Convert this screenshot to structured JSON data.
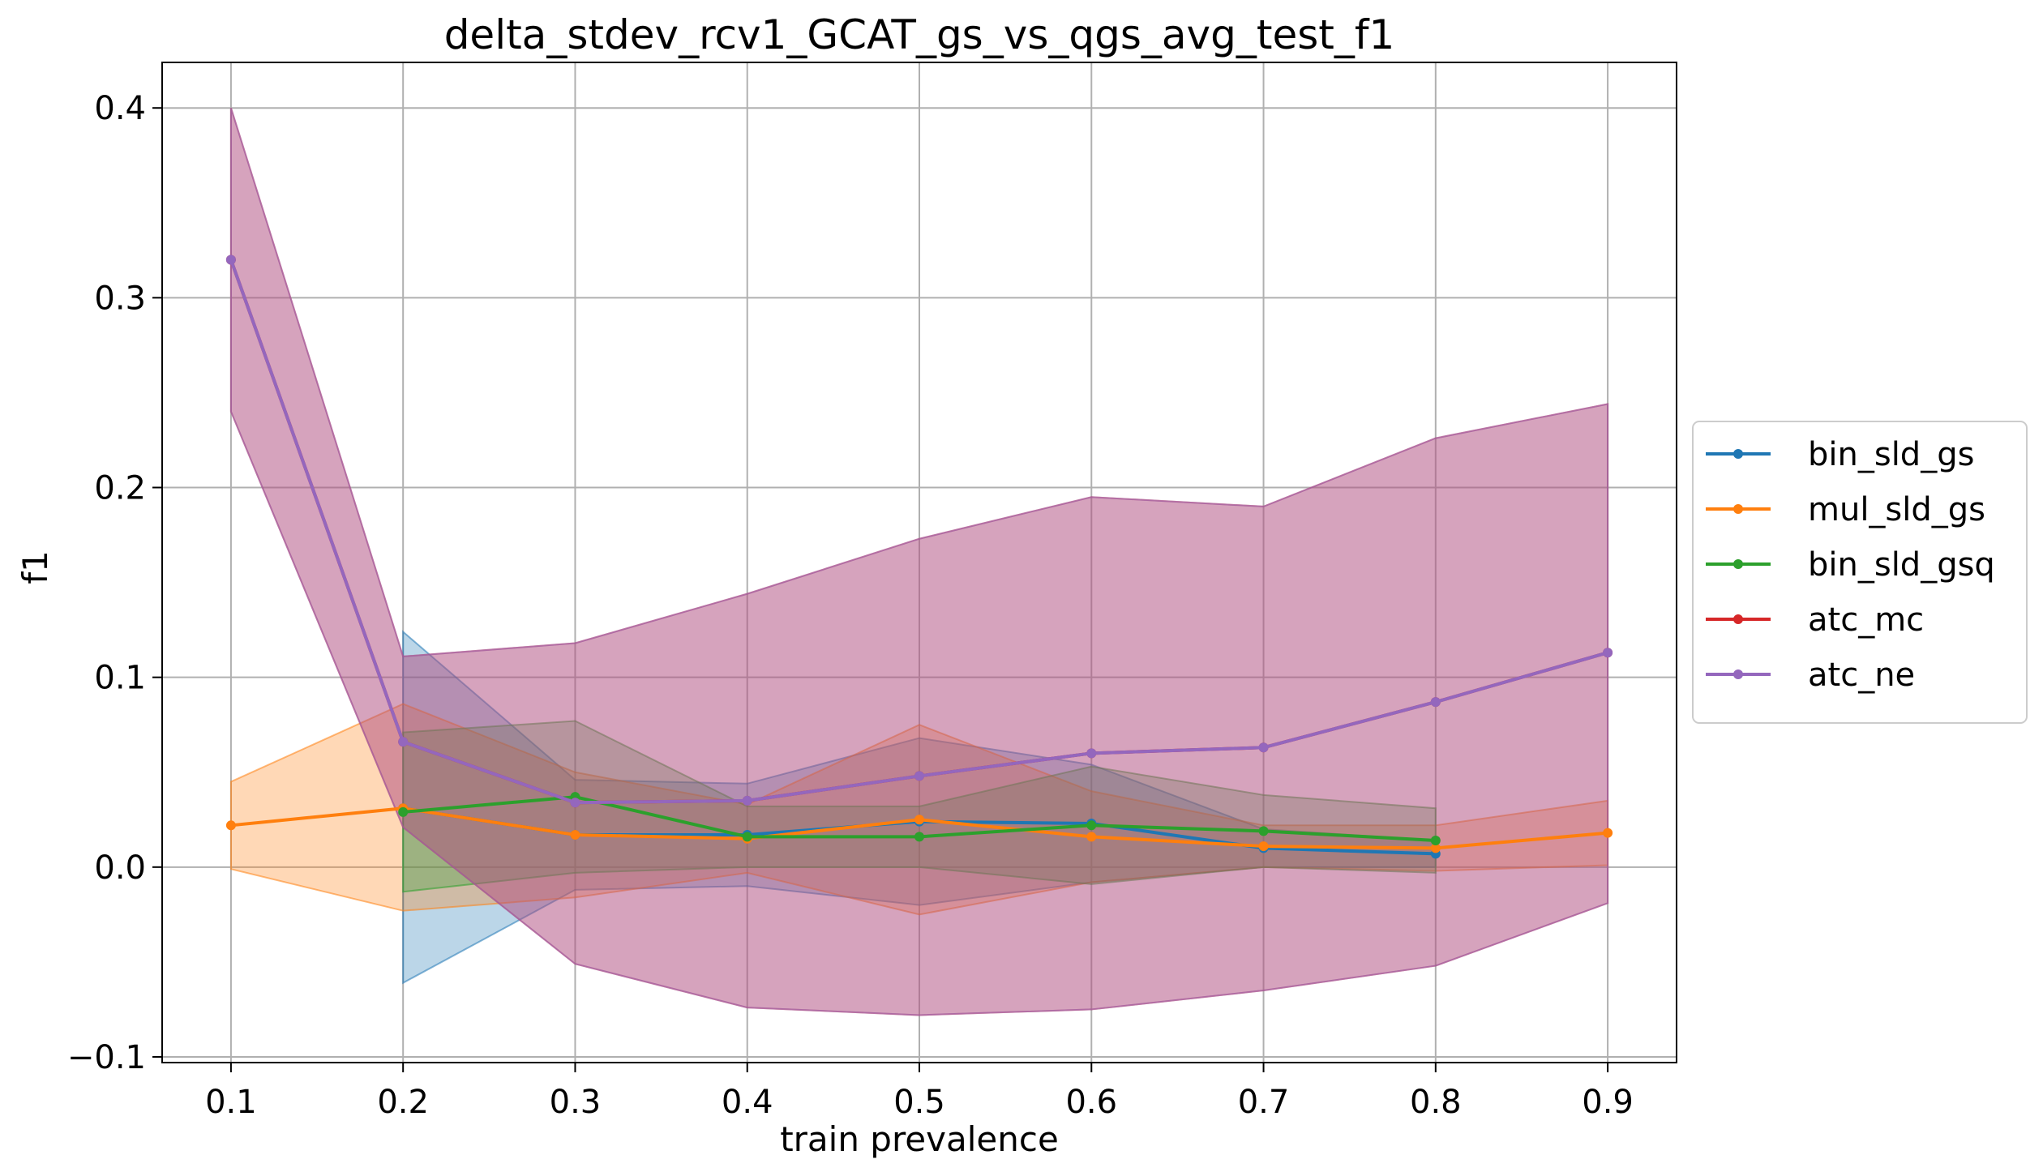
{
  "chart_data": {
    "type": "line",
    "title": "delta_stdev_rcv1_GCAT_gs_vs_qgs_avg_test_f1",
    "xlabel": "train prevalence",
    "ylabel": "f1",
    "xlim": [
      0.06,
      0.94
    ],
    "ylim": [
      -0.103,
      0.424
    ],
    "xticks": [
      0.1,
      0.2,
      0.3,
      0.4,
      0.5,
      0.6,
      0.7,
      0.8,
      0.9
    ],
    "xtick_labels": [
      "0.1",
      "0.2",
      "0.3",
      "0.4",
      "0.5",
      "0.6",
      "0.7",
      "0.8",
      "0.9"
    ],
    "yticks": [
      -0.1,
      0.0,
      0.1,
      0.2,
      0.3,
      0.4
    ],
    "ytick_labels": [
      "−0.1",
      "0.0",
      "0.1",
      "0.2",
      "0.3",
      "0.4"
    ],
    "grid": true,
    "legend_position": "center-right-outside",
    "series": [
      {
        "name": "bin_sld_gs",
        "color": "#1f77b4",
        "x": [
          0.2,
          0.3,
          0.4,
          0.5,
          0.6,
          0.7,
          0.8
        ],
        "y": [
          0.031,
          0.017,
          0.017,
          0.024,
          0.023,
          0.01,
          0.007
        ],
        "band_lower": [
          -0.061,
          -0.012,
          -0.01,
          -0.02,
          -0.008,
          0.0,
          0.0
        ],
        "band_upper": [
          0.124,
          0.046,
          0.044,
          0.068,
          0.054,
          0.02,
          0.014
        ]
      },
      {
        "name": "mul_sld_gs",
        "color": "#ff7f0e",
        "x": [
          0.1,
          0.2,
          0.3,
          0.4,
          0.5,
          0.6,
          0.7,
          0.8,
          0.9
        ],
        "y": [
          0.022,
          0.031,
          0.017,
          0.015,
          0.025,
          0.016,
          0.011,
          0.01,
          0.018
        ],
        "band_lower": [
          -0.001,
          -0.023,
          -0.016,
          -0.003,
          -0.025,
          -0.008,
          0.0,
          -0.002,
          0.001
        ],
        "band_upper": [
          0.045,
          0.086,
          0.05,
          0.033,
          0.075,
          0.04,
          0.022,
          0.022,
          0.035
        ]
      },
      {
        "name": "bin_sld_gsq",
        "color": "#2ca02c",
        "x": [
          0.2,
          0.3,
          0.4,
          0.5,
          0.6,
          0.7,
          0.8
        ],
        "y": [
          0.029,
          0.037,
          0.016,
          0.016,
          0.022,
          0.019,
          0.014
        ],
        "band_lower": [
          -0.013,
          -0.003,
          0.0,
          0.0,
          -0.009,
          0.0,
          -0.003
        ],
        "band_upper": [
          0.071,
          0.077,
          0.032,
          0.032,
          0.053,
          0.038,
          0.031
        ]
      },
      {
        "name": "atc_mc",
        "color": "#d62728",
        "x": [
          0.1,
          0.2,
          0.3,
          0.4,
          0.5,
          0.6,
          0.7,
          0.8,
          0.9
        ],
        "y": [
          0.32,
          0.066,
          0.034,
          0.035,
          0.048,
          0.06,
          0.063,
          0.087,
          0.113
        ],
        "band_lower": [
          0.24,
          0.021,
          -0.051,
          -0.074,
          -0.078,
          -0.075,
          -0.065,
          -0.052,
          -0.019
        ],
        "band_upper": [
          0.4,
          0.111,
          0.118,
          0.144,
          0.173,
          0.195,
          0.19,
          0.226,
          0.244
        ]
      },
      {
        "name": "atc_ne",
        "color": "#9467bd",
        "x": [
          0.1,
          0.2,
          0.3,
          0.4,
          0.5,
          0.6,
          0.7,
          0.8,
          0.9
        ],
        "y": [
          0.32,
          0.066,
          0.034,
          0.035,
          0.048,
          0.06,
          0.063,
          0.087,
          0.113
        ],
        "band_lower": [
          0.24,
          0.021,
          -0.051,
          -0.074,
          -0.078,
          -0.075,
          -0.065,
          -0.052,
          -0.019
        ],
        "band_upper": [
          0.4,
          0.111,
          0.118,
          0.144,
          0.173,
          0.195,
          0.19,
          0.226,
          0.244
        ]
      }
    ]
  }
}
